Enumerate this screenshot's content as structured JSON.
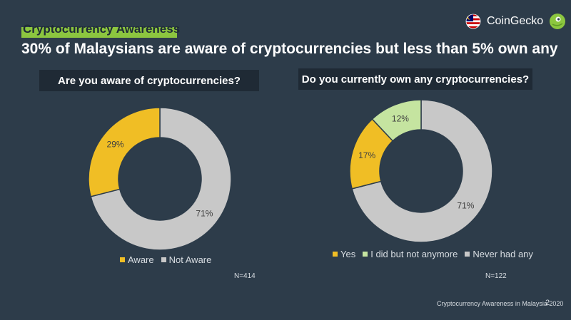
{
  "section_label": "Cryptocurrency Awareness",
  "headline": "30% of Malaysians are aware of cryptocurrencies but less than 5% own any",
  "brand": {
    "name": "CoinGecko",
    "flag_icon": "malaysia-flag-icon",
    "logo_icon": "gecko-logo-icon"
  },
  "colors": {
    "accent": "#8cc63f",
    "background": "#2d3c4a",
    "yellow": "#f0be25",
    "gray": "#c8c8c8",
    "light_green": "#c5e4a0"
  },
  "chart_data": [
    {
      "type": "pie",
      "donut": true,
      "title": "Are you aware of cryptocurrencies?",
      "labels": [
        "Aware",
        "Not Aware"
      ],
      "values": [
        29,
        71
      ],
      "value_labels": [
        "29%",
        "71%"
      ],
      "colors": [
        "#f0be25",
        "#c8c8c8"
      ],
      "note": "N=414"
    },
    {
      "type": "pie",
      "donut": true,
      "title": "Do you currently own any cryptocurrencies?",
      "labels": [
        "Yes",
        "I did but not anymore",
        "Never had any"
      ],
      "values": [
        17,
        12,
        71
      ],
      "value_labels": [
        "17%",
        "12%",
        "71%"
      ],
      "colors": [
        "#f0be25",
        "#c5e4a0",
        "#c8c8c8"
      ],
      "note": "N=122"
    }
  ],
  "footer": {
    "text": "Cryptocurrency Awareness in Malaysia 2020",
    "page": "2"
  }
}
